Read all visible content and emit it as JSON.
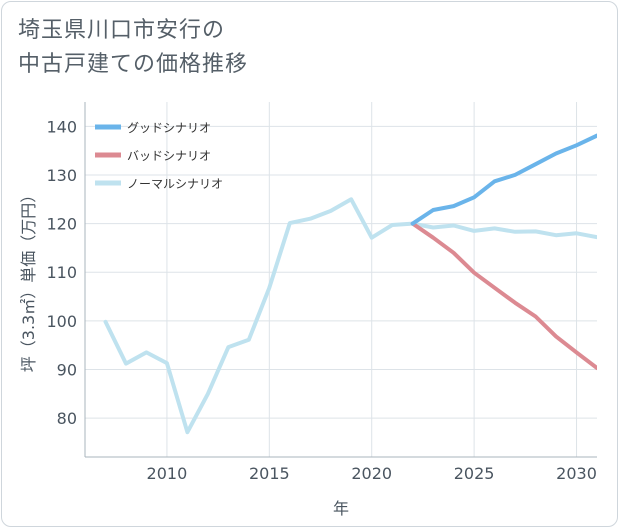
{
  "title_lines": [
    "埼玉県川口市安行の",
    "中古戸建ての価格推移"
  ],
  "colors": {
    "good": "#6ab4ea",
    "bad": "#dc8a92",
    "normal": "#bfe2ef",
    "grid": "#dde3e8",
    "axis": "#aab4bc"
  },
  "chart_data": {
    "type": "line",
    "title": "埼玉県川口市安行の中古戸建ての価格推移",
    "xlabel": "年",
    "ylabel": "坪（3.3㎡）単価（万円）",
    "xlim": [
      2006,
      2031
    ],
    "ylim": [
      72,
      145
    ],
    "x_ticks": [
      2010,
      2015,
      2020,
      2025,
      2030
    ],
    "y_ticks": [
      80,
      90,
      100,
      110,
      120,
      130,
      140
    ],
    "legend_position": "top-left",
    "series": [
      {
        "name": "グッドシナリオ",
        "key": "good",
        "x": [
          2022,
          2023,
          2024,
          2025,
          2026,
          2027,
          2028,
          2029,
          2030,
          2031
        ],
        "y": [
          120.0,
          122.8,
          123.6,
          125.4,
          128.7,
          130.0,
          132.2,
          134.4,
          136.1,
          138.1
        ]
      },
      {
        "name": "バッドシナリオ",
        "key": "bad",
        "x": [
          2022,
          2023,
          2024,
          2025,
          2026,
          2027,
          2028,
          2029,
          2030,
          2031
        ],
        "y": [
          120.0,
          117.1,
          114.0,
          109.9,
          106.8,
          103.7,
          100.9,
          96.8,
          93.5,
          90.3
        ]
      },
      {
        "name": "ノーマルシナリオ",
        "key": "normal",
        "x": [
          2007,
          2008,
          2009,
          2010,
          2011,
          2012,
          2013,
          2014,
          2015,
          2016,
          2017,
          2018,
          2019,
          2020,
          2021,
          2022,
          2023,
          2024,
          2025,
          2026,
          2027,
          2028,
          2029,
          2030,
          2031
        ],
        "y": [
          99.8,
          91.2,
          93.5,
          91.3,
          77.1,
          85.0,
          94.6,
          96.1,
          106.8,
          120.1,
          121.0,
          122.6,
          125.0,
          117.1,
          119.7,
          120.0,
          119.2,
          119.6,
          118.5,
          119.0,
          118.3,
          118.4,
          117.6,
          118.0,
          117.2
        ]
      }
    ]
  }
}
